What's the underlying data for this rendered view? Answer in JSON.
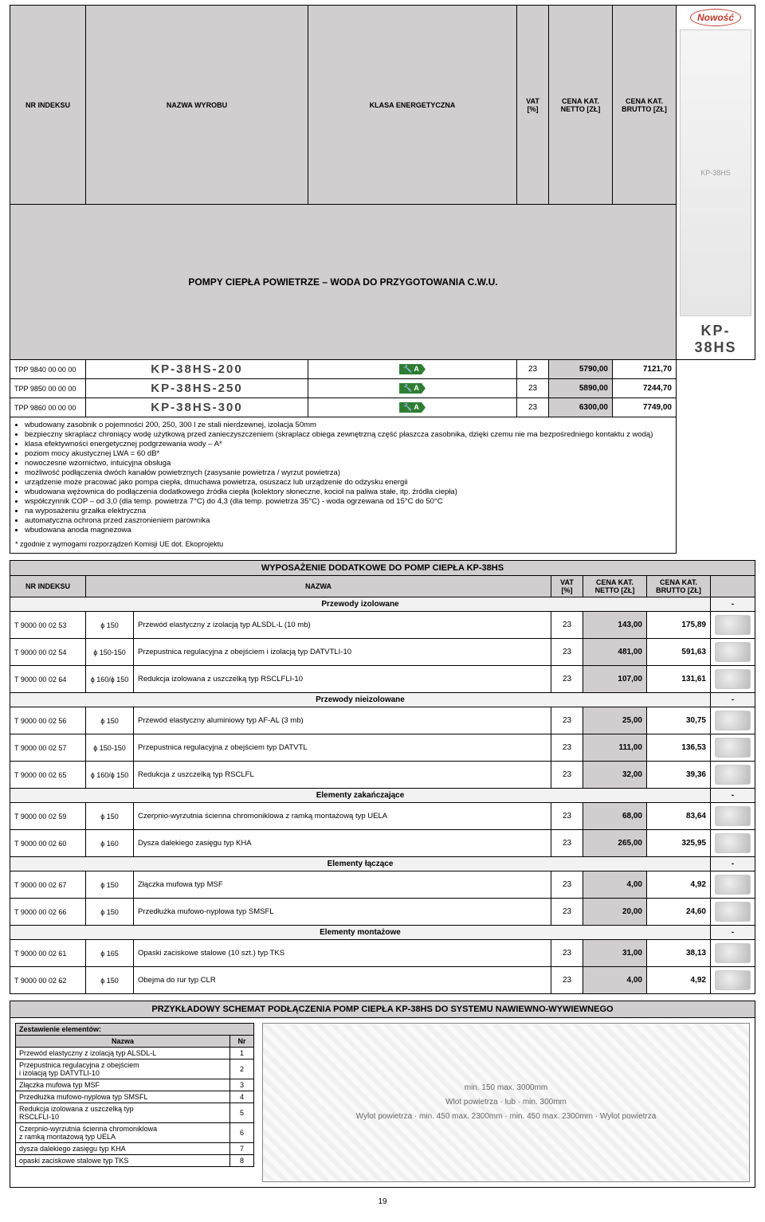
{
  "colors": {
    "header_bg": "#d0cece",
    "netto_bg": "#d0cece",
    "border": "#000000"
  },
  "header1": {
    "cols": [
      "NR INDEKSU",
      "NAZWA WYROBU",
      "KLASA ENERGETYCZNA",
      "VAT [%]",
      "CENA KAT. NETTO [ZŁ]",
      "CENA KAT. BRUTTO [ZŁ]"
    ],
    "section": "POMPY CIEPŁA POWIETRZE – WODA DO PRZYGOTOWANIA C.W.U.",
    "nowosc": "Nowość",
    "side_model": "KP-38HS"
  },
  "pumps": [
    {
      "idx": "TPP 9840 00 00 00",
      "model": "KP-38HS-200",
      "klasa": "A",
      "vat": "23",
      "netto": "5790,00",
      "brutto": "7121,70"
    },
    {
      "idx": "TPP 9850 00 00 00",
      "model": "KP-38HS-250",
      "klasa": "A",
      "vat": "23",
      "netto": "5890,00",
      "brutto": "7244,70"
    },
    {
      "idx": "TPP 9860 00 00 00",
      "model": "KP-38HS-300",
      "klasa": "A",
      "vat": "23",
      "netto": "6300,00",
      "brutto": "7749,00"
    }
  ],
  "bullets": [
    "wbudowany zasobnik o pojemności 200, 250, 300 l ze stali nierdzewnej, izolacja 50mm",
    "bezpieczny skraplacz chroniący wodę użytkową przed zanieczyszczeniem (skraplacz obiega zewnętrzną część płaszcza zasobnika, dzięki czemu nie ma bezpośredniego kontaktu z wodą)",
    "klasa efektywności energetycznej podgrzewania wody – A*",
    "poziom mocy akustycznej LWA = 60 dB*",
    "nowoczesne wzornictwo, intuicyjna obsługa",
    "możliwość podłączenia dwóch kanałów powietrznych (zasysanie powietrza / wyrzut powietrza)",
    "urządzenie może pracować jako pompa ciepła, dmuchawa powietrza, osuszacz lub urządzenie do odzysku energii",
    "wbudowana wężownica do podłączenia dodatkowego źródła ciepła (kolektory słoneczne, kocioł na paliwa stałe, itp. źródła ciepła)",
    "współczynnik COP – od 3,0 (dla temp. powietrza 7°C) do 4,3 (dla temp. powietrza 35°C) - woda ogrzewana od 15°C do 50°C",
    "na wyposażeniu grzałka elektryczna",
    "automatyczna ochrona przed zaszronieniem parownika",
    "wbudowana anoda magnezowa"
  ],
  "footnote": "* zgodnie z wymogami rozporządzeń Komisji UE dot. Ekoprojektu",
  "acc_header": {
    "title": "WYPOSAŻENIE DODATKOWE DO POMP CIEPŁA KP-38HS",
    "cols": [
      "NR INDEKSU",
      "NAZWA",
      "VAT [%]",
      "CENA KAT. NETTO [ZŁ]",
      "CENA KAT. BRUTTO [ZŁ]"
    ]
  },
  "acc_groups": [
    {
      "name": "Przewody izolowane",
      "rows": [
        {
          "idx": "T 9000 00 02 53",
          "diam": "ϕ 150",
          "desc": "Przewód elastyczny z izolacją typ ALSDL-L (10 mb)",
          "vat": "23",
          "netto": "143,00",
          "brutto": "175,89"
        },
        {
          "idx": "T 9000 00 02 54",
          "diam": "ϕ 150-150",
          "desc": "Przepustnica regulacyjna z obejściem i izolacją typ DATVTLI-10",
          "vat": "23",
          "netto": "481,00",
          "brutto": "591,63"
        },
        {
          "idx": "T 9000 00 02 64",
          "diam": "ϕ 160/ϕ 150",
          "desc": "Redukcja izolowana z uszczelką typ RSCLFLI-10",
          "vat": "23",
          "netto": "107,00",
          "brutto": "131,61"
        }
      ]
    },
    {
      "name": "Przewody nieizolowane",
      "rows": [
        {
          "idx": "T 9000 00 02 56",
          "diam": "ϕ 150",
          "desc": "Przewód elastyczny aluminiowy typ AF-AL (3 mb)",
          "vat": "23",
          "netto": "25,00",
          "brutto": "30,75"
        },
        {
          "idx": "T 9000 00 02 57",
          "diam": "ϕ 150-150",
          "desc": "Przepustnica regulacyjna z obejściem typ DATVTL",
          "vat": "23",
          "netto": "111,00",
          "brutto": "136,53"
        },
        {
          "idx": "T 9000 00 02 65",
          "diam": "ϕ 160/ϕ 150",
          "desc": "Redukcja z uszczelką typ RSCLFL",
          "vat": "23",
          "netto": "32,00",
          "brutto": "39,36"
        }
      ]
    },
    {
      "name": "Elementy zakańczające",
      "rows": [
        {
          "idx": "T 9000 00 02 59",
          "diam": "ϕ 150",
          "desc": "Czerpnio-wyrzutnia ścienna chromoniklowa z ramką montażową typ UELA",
          "vat": "23",
          "netto": "68,00",
          "brutto": "83,64"
        },
        {
          "idx": "T 9000 00 02 60",
          "diam": "ϕ 160",
          "desc": "Dysza dalekiego zasięgu  typ KHA",
          "vat": "23",
          "netto": "265,00",
          "brutto": "325,95"
        }
      ]
    },
    {
      "name": "Elementy łączące",
      "rows": [
        {
          "idx": "T 9000 00 02 67",
          "diam": "ϕ 150",
          "desc": "Złączka mufowa typ MSF",
          "vat": "23",
          "netto": "4,00",
          "brutto": "4,92"
        },
        {
          "idx": "T 9000 00 02 66",
          "diam": "ϕ 150",
          "desc": "Przedłużka mufowo-nyplowa typ SMSFL",
          "vat": "23",
          "netto": "20,00",
          "brutto": "24,60"
        }
      ]
    },
    {
      "name": "Elementy montażowe",
      "rows": [
        {
          "idx": "T 9000 00 02 61",
          "diam": "ϕ 165",
          "desc": "Opaski zaciskowe stalowe (10 szt.) typ TKS",
          "vat": "23",
          "netto": "31,00",
          "brutto": "38,13"
        },
        {
          "idx": "T 9000 00 02 62",
          "diam": "ϕ 150",
          "desc": "Obejma do rur typ CLR",
          "vat": "23",
          "netto": "4,00",
          "brutto": "4,92"
        }
      ]
    }
  ],
  "schema": {
    "title": "PRZYKŁADOWY SCHEMAT PODŁĄCZENIA POMP CIEPŁA KP-38HS DO SYSTEMU NAWIEWNO-WYWIEWNEGO",
    "table_header": [
      "Zestawienie elementów:",
      ""
    ],
    "cols": [
      "Nazwa",
      "Nr"
    ],
    "rows": [
      [
        "Przewód elastyczny z izolacją typ ALSDL-L",
        "1"
      ],
      [
        "Przepustnica regulacyjna z obejściem\ni izolacją typ DATVTLI-10",
        "2"
      ],
      [
        "Złączka mufowa typ MSF",
        "3"
      ],
      [
        "Przedłużka mufowo-nyplowa typ SMSFL",
        "4"
      ],
      [
        "Redukcja izolowana z uszczelką typ\nRSCLFLI-10",
        "5"
      ],
      [
        "Czerpnio-wyrzutnia ścienna chromoniklowa\nz ramką montażową typ UELA",
        "6"
      ],
      [
        "dysza dalekiego zasięgu typ KHA",
        "7"
      ],
      [
        "opaski zaciskowe stalowe typ TKS",
        "8"
      ]
    ],
    "labels": {
      "wlot": "Wlot powietrza",
      "wylot": "Wylot powietrza",
      "min150": "min. 150 max. 3000mm",
      "min450": "min. 450 max. 2300mm",
      "min300v": "min. 300mm",
      "lub": "lub"
    }
  },
  "pagenum": "19"
}
